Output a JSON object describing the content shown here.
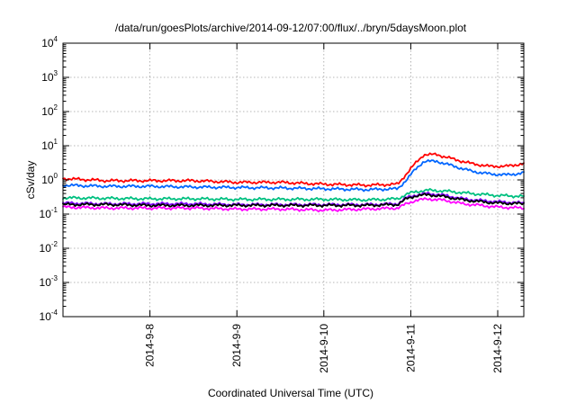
{
  "chart_data": {
    "type": "line",
    "title": "/data/run/goesPlots/archive/2014-09-12/07:00/flux/../bryn/5daysMoon.plot",
    "xlabel": "Coordinated Universal Time (UTC)",
    "ylabel": "cSv/day",
    "yscale": "log",
    "ylim_exponents": [
      -4,
      4
    ],
    "y_tick_base": "10",
    "y_tick_exponents": [
      "-4",
      "-3",
      "-2",
      "-1",
      "0",
      "1",
      "2",
      "3",
      "4"
    ],
    "xlim_days": [
      0,
      5.3
    ],
    "x_ticks": [
      {
        "label": "2014-9-8",
        "day": 1
      },
      {
        "label": "2014-9-9",
        "day": 2
      },
      {
        "label": "2014-9-10",
        "day": 3
      },
      {
        "label": "2014-9-11",
        "day": 4
      },
      {
        "label": "2014-9-12",
        "day": 5
      }
    ],
    "grid": true,
    "series": [
      {
        "color": "#ff0000",
        "x": [
          0,
          0.5,
          1.0,
          1.5,
          2.0,
          2.5,
          3.0,
          3.5,
          3.85,
          3.95,
          4.05,
          4.15,
          4.3,
          4.5,
          4.7,
          4.9,
          5.1,
          5.3
        ],
        "y": [
          1.1,
          0.95,
          0.95,
          0.95,
          0.85,
          0.85,
          0.75,
          0.7,
          0.75,
          1.5,
          3.0,
          5.5,
          5.5,
          4.0,
          3.0,
          2.5,
          2.5,
          3.0
        ]
      },
      {
        "color": "#0066ff",
        "x": [
          0,
          0.5,
          1.0,
          1.5,
          2.0,
          2.5,
          3.0,
          3.5,
          3.85,
          3.95,
          4.05,
          4.15,
          4.3,
          4.5,
          4.7,
          4.9,
          5.1,
          5.3
        ],
        "y": [
          0.7,
          0.65,
          0.65,
          0.62,
          0.6,
          0.58,
          0.55,
          0.52,
          0.55,
          1.0,
          2.0,
          3.5,
          3.5,
          2.5,
          1.8,
          1.5,
          1.4,
          1.6
        ]
      },
      {
        "color": "#00c080",
        "x": [
          0,
          0.5,
          1.0,
          1.5,
          2.0,
          2.5,
          3.0,
          3.5,
          3.85,
          3.95,
          4.05,
          4.2,
          4.4,
          4.6,
          4.8,
          5.0,
          5.3
        ],
        "y": [
          0.3,
          0.29,
          0.28,
          0.28,
          0.27,
          0.27,
          0.27,
          0.26,
          0.28,
          0.38,
          0.45,
          0.5,
          0.47,
          0.42,
          0.38,
          0.35,
          0.33
        ]
      },
      {
        "color": "#8000ff",
        "x": [
          0,
          0.5,
          1.0,
          1.5,
          2.0,
          2.5,
          3.0,
          3.5,
          3.85,
          3.95,
          4.05,
          4.2,
          4.4,
          4.6,
          4.8,
          5.0,
          5.3
        ],
        "y": [
          0.21,
          0.2,
          0.2,
          0.2,
          0.19,
          0.19,
          0.19,
          0.19,
          0.2,
          0.3,
          0.36,
          0.4,
          0.35,
          0.28,
          0.25,
          0.23,
          0.21
        ]
      },
      {
        "color": "#000000",
        "x": [
          0,
          0.5,
          1.0,
          1.5,
          2.0,
          2.5,
          3.0,
          3.5,
          3.85,
          3.95,
          4.05,
          4.2,
          4.4,
          4.6,
          4.8,
          5.0,
          5.3
        ],
        "y": [
          0.19,
          0.19,
          0.18,
          0.18,
          0.18,
          0.18,
          0.18,
          0.18,
          0.19,
          0.28,
          0.34,
          0.37,
          0.32,
          0.26,
          0.23,
          0.21,
          0.2
        ]
      },
      {
        "color": "#ff00ff",
        "x": [
          0,
          0.5,
          1.0,
          1.5,
          2.0,
          2.5,
          3.0,
          3.5,
          3.85,
          3.95,
          4.05,
          4.2,
          4.4,
          4.6,
          4.8,
          5.0,
          5.3
        ],
        "y": [
          0.16,
          0.15,
          0.15,
          0.15,
          0.14,
          0.14,
          0.13,
          0.14,
          0.15,
          0.2,
          0.25,
          0.28,
          0.25,
          0.2,
          0.18,
          0.16,
          0.15
        ]
      }
    ]
  }
}
